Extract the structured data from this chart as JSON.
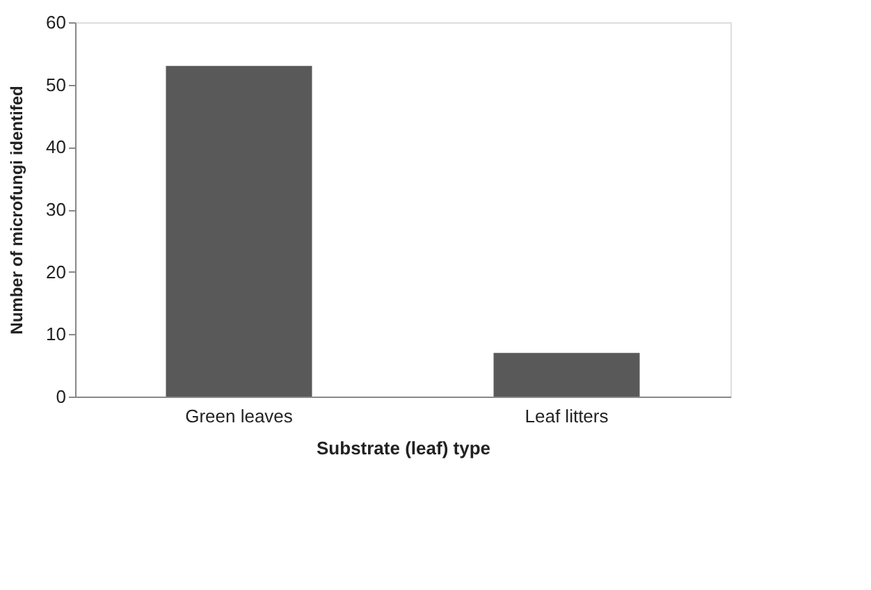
{
  "chart_data": {
    "type": "bar",
    "xlabel": "Substrate (leaf) type",
    "ylabel": "Number of microfungi identifed",
    "categories": [
      "Green leaves",
      "Leaf litters"
    ],
    "values": [
      53,
      7
    ],
    "color": "#595959",
    "ylim": [
      0,
      60
    ],
    "yticks": [
      0,
      10,
      20,
      30,
      40,
      50,
      60
    ],
    "grid": false
  }
}
